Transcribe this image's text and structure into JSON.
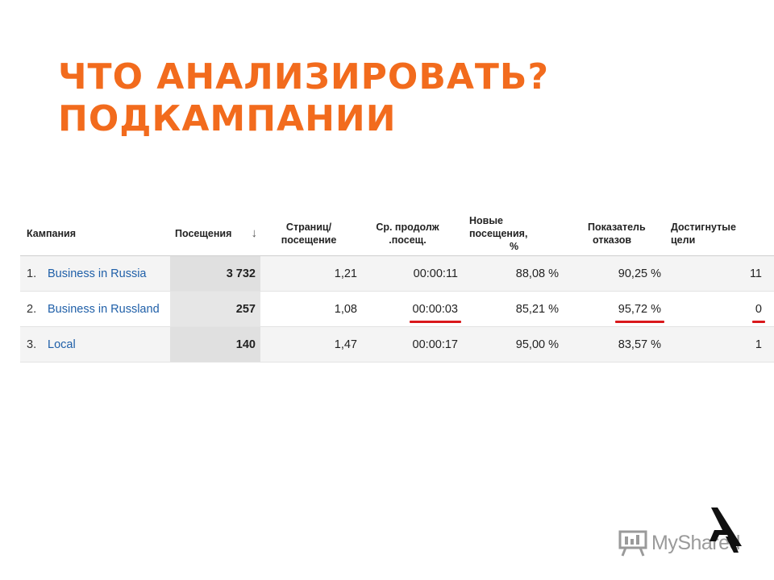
{
  "slide": {
    "title_line1": "ЧТО АНАЛИЗИРОВАТЬ?",
    "title_line2": "ПОДКАМПАНИИ",
    "accent_color": "#f26b1d"
  },
  "table": {
    "headers": {
      "campaign": "Кампания",
      "visits": "Посещения",
      "visits_sort_icon": "↓",
      "pages_line1": "Страниц/",
      "pages_line2": "посещение",
      "duration_line1": "Ср. продолж",
      "duration_line2": ".посещ.",
      "new_visits_line1": "Новые посещения,",
      "new_visits_line2": "%",
      "bounce_line1": "Показатель",
      "bounce_line2": "отказов",
      "goals": "Достигнутые цели"
    },
    "rows": [
      {
        "num": "1.",
        "campaign": "Business in Russia",
        "visits": "3 732",
        "pages": "1,21",
        "duration": "00:00:11",
        "new_visits": "88,08 %",
        "bounce": "90,25 %",
        "goals": "11"
      },
      {
        "num": "2.",
        "campaign": "Business in Russland",
        "visits": "257",
        "pages": "1,08",
        "duration": "00:00:03",
        "new_visits": "85,21 %",
        "bounce": "95,72 %",
        "goals": "0"
      },
      {
        "num": "3.",
        "campaign": "Local",
        "visits": "140",
        "pages": "1,47",
        "duration": "00:00:17",
        "new_visits": "95,00 %",
        "bounce": "83,57 %",
        "goals": "1"
      }
    ],
    "highlight_color": "#d9191c",
    "link_color": "#1f5fa8"
  },
  "logo": {
    "text": "MyShared",
    "icon": "presentation-board-icon",
    "mark": "cursor-a-icon"
  }
}
